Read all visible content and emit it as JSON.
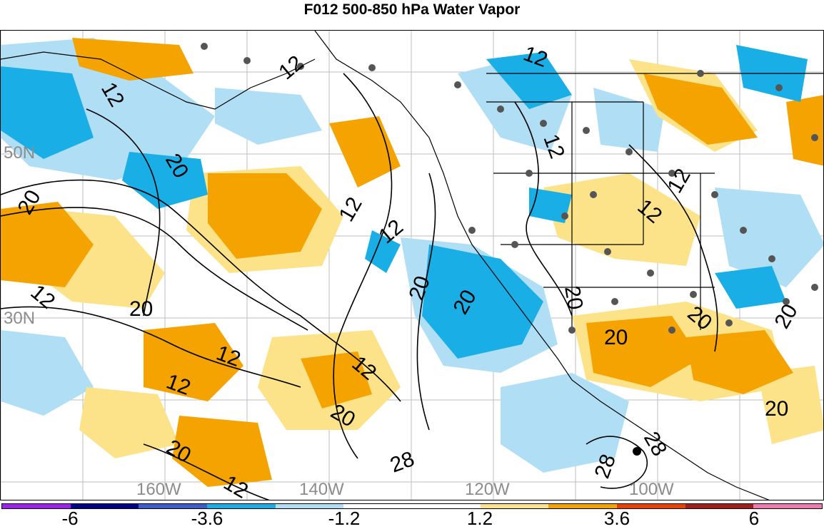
{
  "title": "F012 500-850 hPa Water Vapor",
  "map": {
    "lat_labels": [
      "50N",
      "30N"
    ],
    "lon_labels": [
      "160W",
      "140W",
      "120W",
      "100W"
    ],
    "contour_labels": [
      "12",
      "20",
      "28"
    ]
  },
  "colorbar": {
    "colors": [
      "#a020f0",
      "#00008b",
      "#3a5fcd",
      "#1aaee6",
      "#b0dff5",
      "#ffffff",
      "#ffffff",
      "#fce38a",
      "#f4a300",
      "#ee4000",
      "#a51c1c",
      "#f07ab0"
    ],
    "tick_labels": [
      "-6",
      "-3.6",
      "-1.2",
      "1.2",
      "3.6",
      "6"
    ]
  }
}
